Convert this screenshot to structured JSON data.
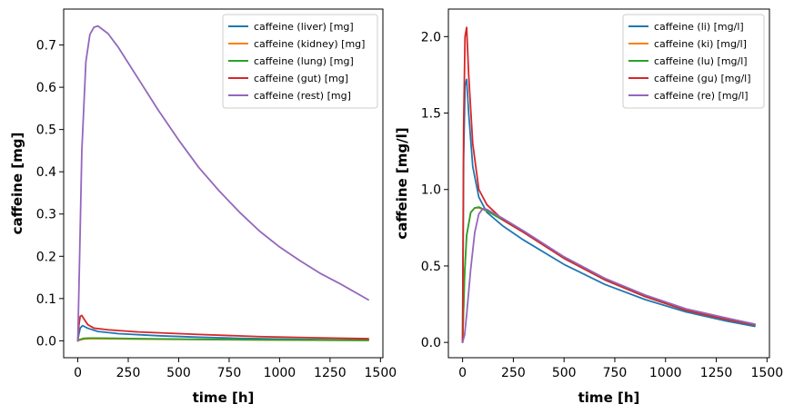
{
  "chart_data": [
    {
      "type": "line",
      "xlabel": "time [h]",
      "ylabel": "caffeine [mg]",
      "xlim": [
        -70,
        1512
      ],
      "ylim": [
        -0.04,
        0.785
      ],
      "xticks": [
        0,
        250,
        500,
        750,
        1000,
        1250,
        1500
      ],
      "yticks": [
        0.0,
        0.1,
        0.2,
        0.3,
        0.4,
        0.5,
        0.6,
        0.7
      ],
      "ytick_labels": [
        "0.0",
        "0.1",
        "0.2",
        "0.3",
        "0.4",
        "0.5",
        "0.6",
        "0.7"
      ],
      "legend_position": "top-right",
      "grid": false,
      "series": [
        {
          "name": "caffeine (liver) [mg]",
          "color": "#1f77b4",
          "x": [
            0,
            5,
            12,
            24,
            48,
            100,
            200,
            400,
            600,
            800,
            1000,
            1200,
            1440
          ],
          "y": [
            0.0,
            0.015,
            0.03,
            0.036,
            0.03,
            0.022,
            0.017,
            0.012,
            0.0085,
            0.006,
            0.0043,
            0.003,
            0.002
          ]
        },
        {
          "name": "caffeine (kidney) [mg]",
          "color": "#ff7f0e",
          "x": [
            0,
            10,
            30,
            60,
            100,
            300,
            600,
            900,
            1200,
            1440
          ],
          "y": [
            0.0,
            0.002,
            0.004,
            0.005,
            0.005,
            0.004,
            0.003,
            0.002,
            0.0015,
            0.001
          ]
        },
        {
          "name": "caffeine (lung) [mg]",
          "color": "#2ca02c",
          "x": [
            0,
            10,
            30,
            60,
            100,
            300,
            600,
            900,
            1200,
            1440
          ],
          "y": [
            0.0,
            0.003,
            0.006,
            0.0065,
            0.0065,
            0.005,
            0.0035,
            0.0025,
            0.0018,
            0.0012
          ]
        },
        {
          "name": "caffeine (gut) [mg]",
          "color": "#d62728",
          "x": [
            0,
            5,
            12,
            20,
            30,
            50,
            80,
            150,
            300,
            600,
            900,
            1200,
            1440
          ],
          "y": [
            0.0,
            0.035,
            0.058,
            0.06,
            0.052,
            0.038,
            0.03,
            0.026,
            0.021,
            0.015,
            0.01,
            0.007,
            0.005
          ]
        },
        {
          "name": "caffeine (rest) [mg]",
          "color": "#9467bd",
          "x": [
            0,
            10,
            20,
            40,
            60,
            80,
            100,
            150,
            200,
            300,
            400,
            500,
            600,
            700,
            800,
            900,
            1000,
            1100,
            1200,
            1300,
            1440
          ],
          "y": [
            0.0,
            0.22,
            0.45,
            0.66,
            0.725,
            0.742,
            0.745,
            0.727,
            0.695,
            0.62,
            0.545,
            0.475,
            0.41,
            0.355,
            0.305,
            0.26,
            0.222,
            0.19,
            0.16,
            0.135,
            0.097
          ]
        }
      ]
    },
    {
      "type": "line",
      "xlabel": "time [h]",
      "ylabel": "caffeine [mg/l]",
      "xlim": [
        -70,
        1512
      ],
      "ylim": [
        -0.1,
        2.18
      ],
      "xticks": [
        0,
        250,
        500,
        750,
        1000,
        1250,
        1500
      ],
      "yticks": [
        0.0,
        0.5,
        1.0,
        1.5,
        2.0
      ],
      "ytick_labels": [
        "0.0",
        "0.5",
        "1.0",
        "1.5",
        "2.0"
      ],
      "legend_position": "top-right",
      "grid": false,
      "series": [
        {
          "name": "caffeine (li) [mg/l]",
          "color": "#1f77b4",
          "x": [
            0,
            5,
            12,
            20,
            30,
            50,
            80,
            120,
            200,
            300,
            500,
            700,
            900,
            1100,
            1300,
            1440
          ],
          "y": [
            0.0,
            1.2,
            1.68,
            1.72,
            1.5,
            1.15,
            0.95,
            0.85,
            0.76,
            0.67,
            0.51,
            0.38,
            0.28,
            0.2,
            0.14,
            0.105
          ]
        },
        {
          "name": "caffeine (ki) [mg/l]",
          "color": "#ff7f0e",
          "x": [
            0,
            10,
            20,
            40,
            60,
            80,
            120,
            200,
            300,
            500,
            700,
            900,
            1100,
            1300,
            1440
          ],
          "y": [
            0.0,
            0.45,
            0.7,
            0.85,
            0.88,
            0.88,
            0.86,
            0.8,
            0.72,
            0.55,
            0.41,
            0.3,
            0.21,
            0.15,
            0.115
          ]
        },
        {
          "name": "caffeine (lu) [mg/l]",
          "color": "#2ca02c",
          "x": [
            0,
            10,
            20,
            40,
            60,
            80,
            120,
            200,
            300,
            500,
            700,
            900,
            1100,
            1300,
            1440
          ],
          "y": [
            0.0,
            0.45,
            0.7,
            0.85,
            0.88,
            0.885,
            0.86,
            0.8,
            0.72,
            0.55,
            0.41,
            0.3,
            0.21,
            0.15,
            0.115
          ]
        },
        {
          "name": "caffeine (gu) [mg/l]",
          "color": "#d62728",
          "x": [
            0,
            5,
            12,
            20,
            30,
            50,
            80,
            120,
            200,
            300,
            500,
            700,
            900,
            1100,
            1300,
            1440
          ],
          "y": [
            0.0,
            1.4,
            2.0,
            2.06,
            1.75,
            1.3,
            1.0,
            0.9,
            0.8,
            0.72,
            0.55,
            0.41,
            0.3,
            0.21,
            0.15,
            0.115
          ]
        },
        {
          "name": "caffeine (re) [mg/l]",
          "color": "#9467bd",
          "x": [
            0,
            10,
            20,
            40,
            60,
            80,
            100,
            120,
            200,
            300,
            500,
            700,
            900,
            1100,
            1300,
            1440
          ],
          "y": [
            0.0,
            0.05,
            0.18,
            0.48,
            0.72,
            0.84,
            0.875,
            0.87,
            0.81,
            0.73,
            0.56,
            0.42,
            0.31,
            0.22,
            0.16,
            0.12
          ]
        }
      ]
    }
  ]
}
